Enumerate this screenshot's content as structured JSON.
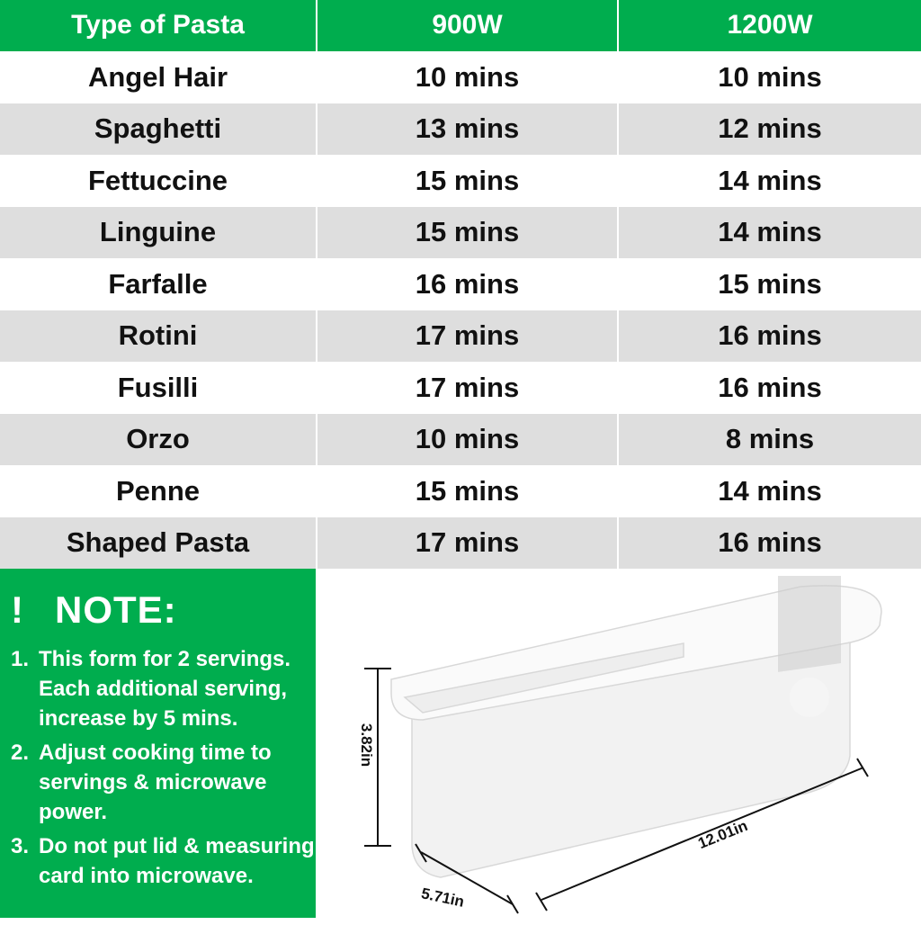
{
  "table": {
    "headers": [
      "Type of Pasta",
      "900W",
      "1200W"
    ],
    "rows": [
      [
        "Angel Hair",
        "10 mins",
        "10 mins"
      ],
      [
        "Spaghetti",
        "13 mins",
        "12 mins"
      ],
      [
        "Fettuccine",
        "15 mins",
        "14 mins"
      ],
      [
        "Linguine",
        "15 mins",
        "14 mins"
      ],
      [
        "Farfalle",
        "16 mins",
        "15 mins"
      ],
      [
        "Rotini",
        "17 mins",
        "16 mins"
      ],
      [
        "Fusilli",
        "17 mins",
        "16 mins"
      ],
      [
        "Orzo",
        "10 mins",
        "8 mins"
      ],
      [
        "Penne",
        "15 mins",
        "14 mins"
      ],
      [
        "Shaped Pasta",
        "17 mins",
        "16 mins"
      ]
    ]
  },
  "note": {
    "mark": "!",
    "title": "NOTE:",
    "items": [
      {
        "num": "1.",
        "text": "This form for 2 servings. Each additional serving, increase by 5 mins."
      },
      {
        "num": "2.",
        "text": "Adjust cooking time to servings & microwave power."
      },
      {
        "num": "3.",
        "text": "Do not put lid & measuring card into microwave."
      }
    ]
  },
  "product": {
    "height": "3.82in",
    "width": "5.71in",
    "length": "12.01in"
  },
  "colors": {
    "accent": "#00ad4e",
    "row_alt": "#dedede"
  }
}
